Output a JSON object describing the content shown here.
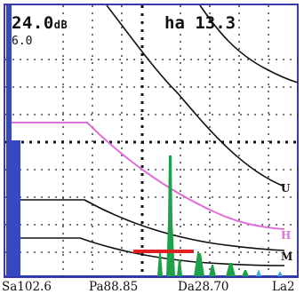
{
  "readouts": {
    "gain": "24.0",
    "gain_unit": "dB",
    "gain_step": "6.0",
    "ha": "ha 13.3"
  },
  "bottom_bar": {
    "sa": "Sa102.6",
    "pa": "Pa88.85",
    "da": "Da28.70",
    "la": "La2"
  },
  "curve_labels": {
    "u": "U",
    "h": "H",
    "m": "M"
  },
  "colors": {
    "background": "#ffffff",
    "frame": "#3a3aaa",
    "initial_pulse": "#3848c0",
    "echo": "#1fa14a",
    "gate": "#e02020",
    "dac_reference": "#e070d8",
    "dac_curves": "#111111",
    "grid": "#222222",
    "noise": "#3fa8e0"
  },
  "icons": {
    "gate": "gate-bar",
    "cursor": "dotted-crosshair"
  }
}
